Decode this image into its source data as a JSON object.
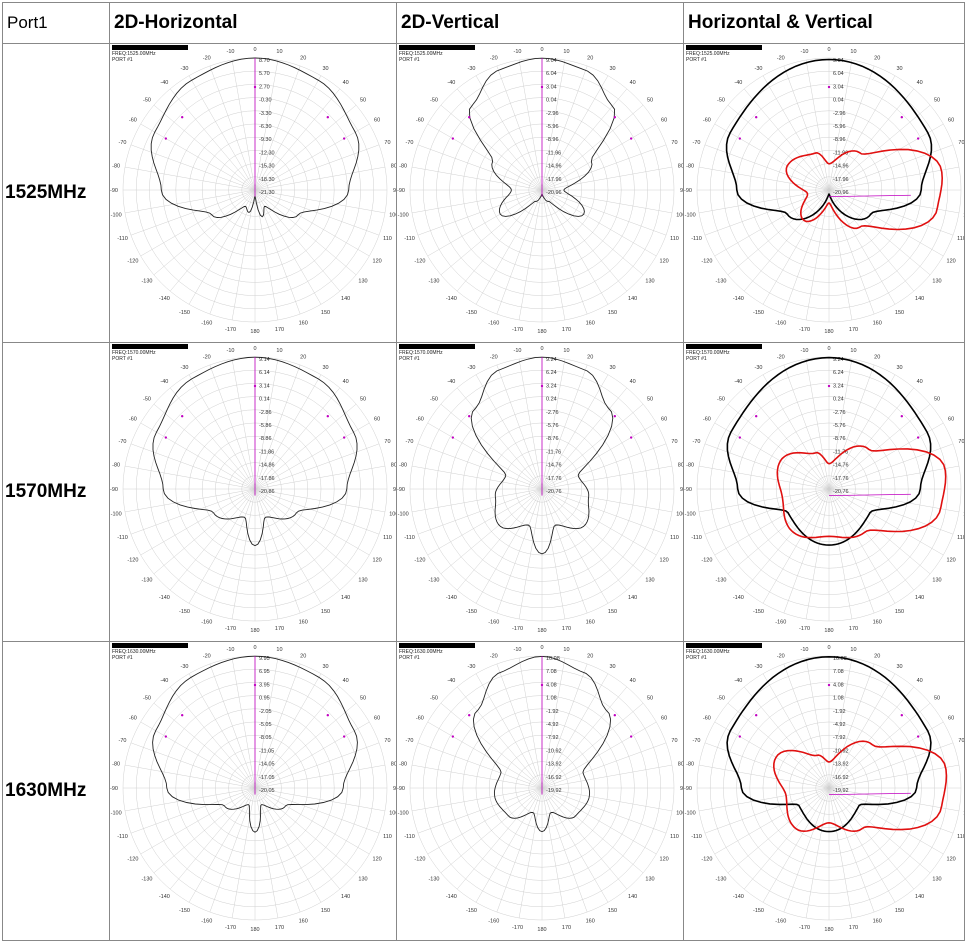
{
  "corner_label": "Port1",
  "columns": [
    "2D-Horizontal",
    "2D-Vertical",
    "Horizontal & Vertical"
  ],
  "rows": [
    {
      "label": "1525MHz",
      "freq": "FREQ:1525.00MHz",
      "port": "PORT #1",
      "horizontal_radial_labels": [
        "8.70",
        "5.70",
        "2.70",
        "-0.30",
        "-3.30",
        "-6.30",
        "-9.30",
        "-12.30",
        "-15.30",
        "-18.30",
        "-21.30"
      ],
      "vertical_radial_labels": [
        "9.04",
        "6.04",
        "3.04",
        "0.04",
        "-2.96",
        "-5.96",
        "-8.96",
        "-11.96",
        "-14.96",
        "-17.96",
        "-20.96"
      ]
    },
    {
      "label": "1570MHz",
      "freq": "FREQ:1570.00MHz",
      "port": "PORT #1",
      "horizontal_radial_labels": [
        "9.14",
        "6.14",
        "3.14",
        "0.14",
        "-2.86",
        "-5.86",
        "-8.86",
        "-11.86",
        "-14.86",
        "-17.86",
        "-20.86"
      ],
      "vertical_radial_labels": [
        "9.24",
        "6.24",
        "3.24",
        "0.24",
        "-2.76",
        "-5.76",
        "-8.76",
        "-11.76",
        "-14.76",
        "-17.76",
        "-20.76"
      ]
    },
    {
      "label": "1630MHz",
      "freq": "FREQ:1630.00MHz",
      "port": "PORT #1",
      "horizontal_radial_labels": [
        "9.95",
        "6.95",
        "3.95",
        "0.95",
        "-2.05",
        "-5.05",
        "-8.05",
        "-11.05",
        "-14.05",
        "-17.05",
        "-20.05"
      ],
      "vertical_radial_labels": [
        "10.08",
        "7.08",
        "4.08",
        "1.08",
        "-1.92",
        "-4.92",
        "-7.92",
        "-10.92",
        "-13.92",
        "-16.92",
        "-19.92"
      ]
    }
  ],
  "angle_labels": [
    "0",
    "10",
    "20",
    "30",
    "40",
    "50",
    "60",
    "70",
    "80",
    "90",
    "100",
    "110",
    "120",
    "130",
    "140",
    "150",
    "160",
    "170",
    "180",
    "-170",
    "-160",
    "-150",
    "-140",
    "-130",
    "-120",
    "-110",
    "-100",
    "-90",
    "-80",
    "-70",
    "-60",
    "-50",
    "-40",
    "-30",
    "-20",
    "-10"
  ],
  "colors": {
    "horizontal": "#222222",
    "vertical": "#222222",
    "overlay_horizontal": "#000000",
    "overlay_vertical": "#e01010",
    "marker": "#c000c0",
    "grid": "#d0d0d0"
  },
  "chart_data": [
    {
      "type": "polar",
      "row": "1525MHz",
      "column": "2D-Horizontal",
      "series": [
        {
          "name": "Horizontal",
          "theta_deg": [
            0,
            30,
            60,
            90,
            120,
            150,
            165,
            180,
            195,
            210,
            240,
            270,
            300,
            330
          ],
          "r_db": [
            8.7,
            7.5,
            5,
            0,
            -10,
            -17,
            -15,
            -20,
            -16,
            -17,
            -10,
            0,
            5,
            7.5
          ]
        }
      ]
    },
    {
      "type": "polar",
      "row": "1525MHz",
      "column": "2D-Vertical",
      "series": [
        {
          "name": "Vertical",
          "theta_deg": [
            0,
            20,
            40,
            60,
            90,
            120,
            150,
            180,
            210,
            240,
            270,
            300,
            320,
            340
          ],
          "r_db": [
            9,
            8,
            4,
            -8,
            -16,
            -10,
            -18,
            -20,
            -18,
            -10,
            -14,
            -8,
            4,
            8
          ]
        }
      ]
    },
    {
      "type": "polar",
      "row": "1525MHz",
      "column": "Horizontal & Vertical",
      "series": [
        {
          "name": "Horizontal",
          "theta_deg": [
            0,
            60,
            90,
            120,
            180,
            240,
            270,
            300
          ],
          "r_db": [
            8.7,
            5,
            0,
            -10,
            -20,
            -10,
            0,
            5
          ]
        },
        {
          "name": "Vertical",
          "theta_deg": [
            0,
            40,
            80,
            100,
            140,
            180,
            220,
            260,
            300,
            340
          ],
          "r_db": [
            -15,
            -10,
            5,
            4,
            -10,
            -18,
            -12,
            -16,
            -10,
            -12
          ]
        }
      ]
    },
    {
      "type": "polar",
      "row": "1570MHz",
      "column": "2D-Horizontal",
      "series": [
        {
          "name": "Horizontal",
          "theta_deg": [
            0,
            30,
            60,
            90,
            120,
            160,
            180,
            200,
            240,
            270,
            300,
            330
          ],
          "r_db": [
            9.1,
            8,
            5,
            0,
            -10,
            -14,
            -8,
            -14,
            -10,
            0,
            5,
            8
          ]
        }
      ]
    },
    {
      "type": "polar",
      "row": "1570MHz",
      "column": "2D-Vertical",
      "series": [
        {
          "name": "Vertical",
          "theta_deg": [
            0,
            20,
            40,
            70,
            100,
            130,
            160,
            180,
            200,
            230,
            260,
            290,
            320,
            340
          ],
          "r_db": [
            9.2,
            8,
            3,
            -12,
            -10,
            -8,
            -12,
            -6,
            -12,
            -8,
            -10,
            -12,
            3,
            8
          ]
        }
      ]
    },
    {
      "type": "polar",
      "row": "1570MHz",
      "column": "Horizontal & Vertical",
      "series": [
        {
          "name": "Horizontal",
          "theta_deg": [
            0,
            60,
            90,
            120,
            180,
            240,
            270,
            300
          ],
          "r_db": [
            9.1,
            5,
            0,
            -10,
            -8,
            -10,
            0,
            5
          ]
        },
        {
          "name": "Vertical",
          "theta_deg": [
            0,
            45,
            80,
            100,
            140,
            180,
            220,
            260,
            300,
            340
          ],
          "r_db": [
            -15,
            -8,
            6,
            5,
            -8,
            -10,
            -8,
            -10,
            -8,
            -12
          ]
        }
      ]
    },
    {
      "type": "polar",
      "row": "1630MHz",
      "column": "2D-Horizontal",
      "series": [
        {
          "name": "Horizontal",
          "theta_deg": [
            0,
            30,
            60,
            90,
            120,
            160,
            180,
            200,
            240,
            270,
            300,
            330
          ],
          "r_db": [
            9.9,
            9,
            6,
            0,
            -12,
            -16,
            -10,
            -16,
            -12,
            0,
            6,
            9
          ]
        }
      ]
    },
    {
      "type": "polar",
      "row": "1630MHz",
      "column": "2D-Vertical",
      "series": [
        {
          "name": "Vertical",
          "theta_deg": [
            0,
            20,
            40,
            70,
            100,
            130,
            160,
            180,
            200,
            230,
            260,
            290,
            320,
            340
          ],
          "r_db": [
            10,
            8,
            3,
            -10,
            -9,
            -10,
            -14,
            -10,
            -14,
            -10,
            -9,
            -10,
            3,
            8
          ]
        }
      ]
    },
    {
      "type": "polar",
      "row": "1630MHz",
      "column": "Horizontal & Vertical",
      "series": [
        {
          "name": "Horizontal",
          "theta_deg": [
            0,
            60,
            90,
            120,
            180,
            240,
            270,
            300
          ],
          "r_db": [
            9.9,
            6,
            0,
            -12,
            -10,
            -12,
            0,
            6
          ]
        },
        {
          "name": "Vertical",
          "theta_deg": [
            0,
            45,
            80,
            100,
            140,
            180,
            220,
            260,
            300,
            340
          ],
          "r_db": [
            -14,
            -6,
            7,
            6,
            -8,
            -12,
            -8,
            -10,
            -6,
            -12
          ]
        }
      ]
    }
  ]
}
